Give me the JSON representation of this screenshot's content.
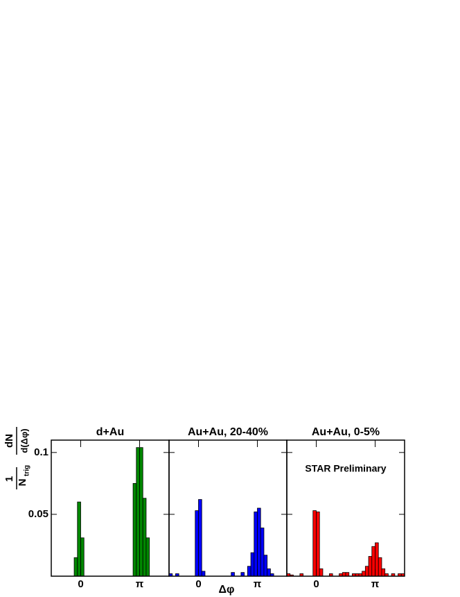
{
  "chart_data": [
    {
      "type": "histogram",
      "title": "d+Au",
      "color": "#008800",
      "bins": [
        -1.571,
        -1.396,
        -1.222,
        -1.047,
        -0.873,
        -0.698,
        -0.524,
        -0.349,
        -0.175,
        0,
        0.175,
        0.349,
        0.524,
        0.698,
        0.873,
        1.047,
        1.222,
        1.396,
        1.571,
        1.745,
        1.92,
        2.094,
        2.269,
        2.443,
        2.618,
        2.793,
        2.967,
        3.142,
        3.316,
        3.491,
        3.665,
        3.84,
        4.014,
        4.189,
        4.363,
        4.538,
        4.712
      ],
      "values": [
        0,
        0,
        0,
        0,
        0,
        0,
        0,
        0.015,
        0.06,
        0.031,
        0,
        0,
        0,
        0,
        0,
        0,
        0,
        0,
        0,
        0,
        0,
        0,
        0,
        0,
        0,
        0.075,
        0.104,
        0.104,
        0.063,
        0.031,
        0,
        0,
        0,
        0,
        0,
        0
      ],
      "xlim": [
        -1.571,
        4.712
      ],
      "xticks": [
        0,
        {
          "value": 3.142,
          "label": "π"
        }
      ],
      "ylim": [
        0,
        0.11
      ],
      "yticks": [
        0.05,
        0.1
      ],
      "ylabel": {
        "num1": "1",
        "den1": "N",
        "den1_sub": "trig",
        "num2": "dN",
        "den2": "d(Δφ)"
      }
    },
    {
      "type": "histogram",
      "title": "Au+Au, 20-40%",
      "color": "#0000ff",
      "bins": [
        -1.571,
        -1.396,
        -1.222,
        -1.047,
        -0.873,
        -0.698,
        -0.524,
        -0.349,
        -0.175,
        0,
        0.175,
        0.349,
        0.524,
        0.698,
        0.873,
        1.047,
        1.222,
        1.396,
        1.571,
        1.745,
        1.92,
        2.094,
        2.269,
        2.443,
        2.618,
        2.793,
        2.967,
        3.142,
        3.316,
        3.491,
        3.665,
        3.84,
        4.014,
        4.189,
        4.363,
        4.538,
        4.712
      ],
      "values": [
        0.002,
        0,
        0.002,
        0,
        0,
        0,
        0,
        0,
        0.053,
        0.062,
        0.004,
        0,
        0,
        0,
        0,
        0,
        0,
        0,
        0,
        0.003,
        0,
        0,
        0.003,
        0,
        0.008,
        0.019,
        0.052,
        0.055,
        0.039,
        0.017,
        0.006,
        0.002,
        0,
        0,
        0,
        0
      ],
      "xlim": [
        -1.571,
        4.712
      ],
      "xticks": [
        0,
        {
          "value": 3.142,
          "label": "π"
        }
      ],
      "ylim": [
        0,
        0.11
      ],
      "xlabel": "Δφ"
    },
    {
      "type": "histogram",
      "title": "Au+Au, 0-5%",
      "color": "#ff0000",
      "bins": [
        -1.571,
        -1.396,
        -1.222,
        -1.047,
        -0.873,
        -0.698,
        -0.524,
        -0.349,
        -0.175,
        0,
        0.175,
        0.349,
        0.524,
        0.698,
        0.873,
        1.047,
        1.222,
        1.396,
        1.571,
        1.745,
        1.92,
        2.094,
        2.269,
        2.443,
        2.618,
        2.793,
        2.967,
        3.142,
        3.316,
        3.491,
        3.665,
        3.84,
        4.014,
        4.189,
        4.363,
        4.538,
        4.712
      ],
      "values": [
        0.002,
        0.001,
        0,
        0,
        0.002,
        0,
        0,
        0,
        0.053,
        0.052,
        0.006,
        0,
        0,
        0.002,
        0,
        0,
        0.002,
        0.003,
        0.003,
        0,
        0.002,
        0.002,
        0.002,
        0.004,
        0.008,
        0.016,
        0.024,
        0.027,
        0.015,
        0.006,
        0.002,
        0,
        0.002,
        0,
        0.002,
        0.002
      ],
      "xlim": [
        -1.571,
        4.712
      ],
      "xticks": [
        0,
        {
          "value": 3.142,
          "label": "π"
        }
      ],
      "ylim": [
        0,
        0.11
      ],
      "annotation": "STAR Preliminary"
    }
  ]
}
